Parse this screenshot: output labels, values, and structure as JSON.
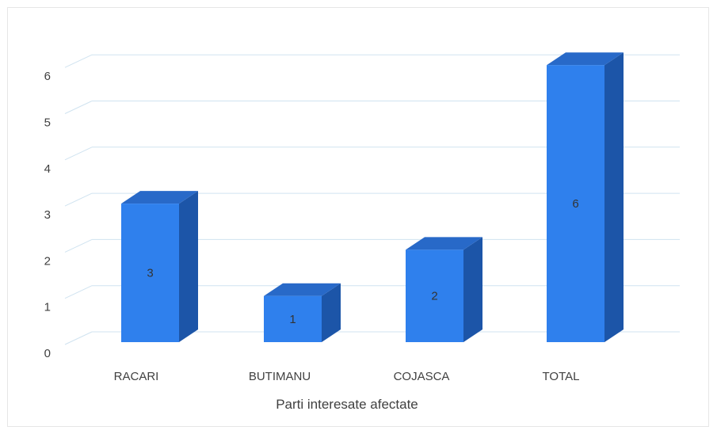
{
  "chart_data": {
    "type": "bar",
    "categories": [
      "RACARI",
      "BUTIMANU",
      "COJASCA",
      "TOTAL"
    ],
    "values": [
      3,
      1,
      2,
      6
    ],
    "title": "",
    "xlabel": "Parti interesate afectate",
    "ylabel": "",
    "ylim": [
      0,
      6
    ],
    "yticks": [
      0,
      1,
      2,
      3,
      4,
      5,
      6
    ],
    "grid": true,
    "legend": "none",
    "data_labels": true,
    "style": "3d-column",
    "colors": {
      "bar_front": "#2f80ed",
      "bar_side": "#1c55a8",
      "bar_top": "#2869c8",
      "grid": "#d0e3f0",
      "text": "#404040"
    }
  }
}
